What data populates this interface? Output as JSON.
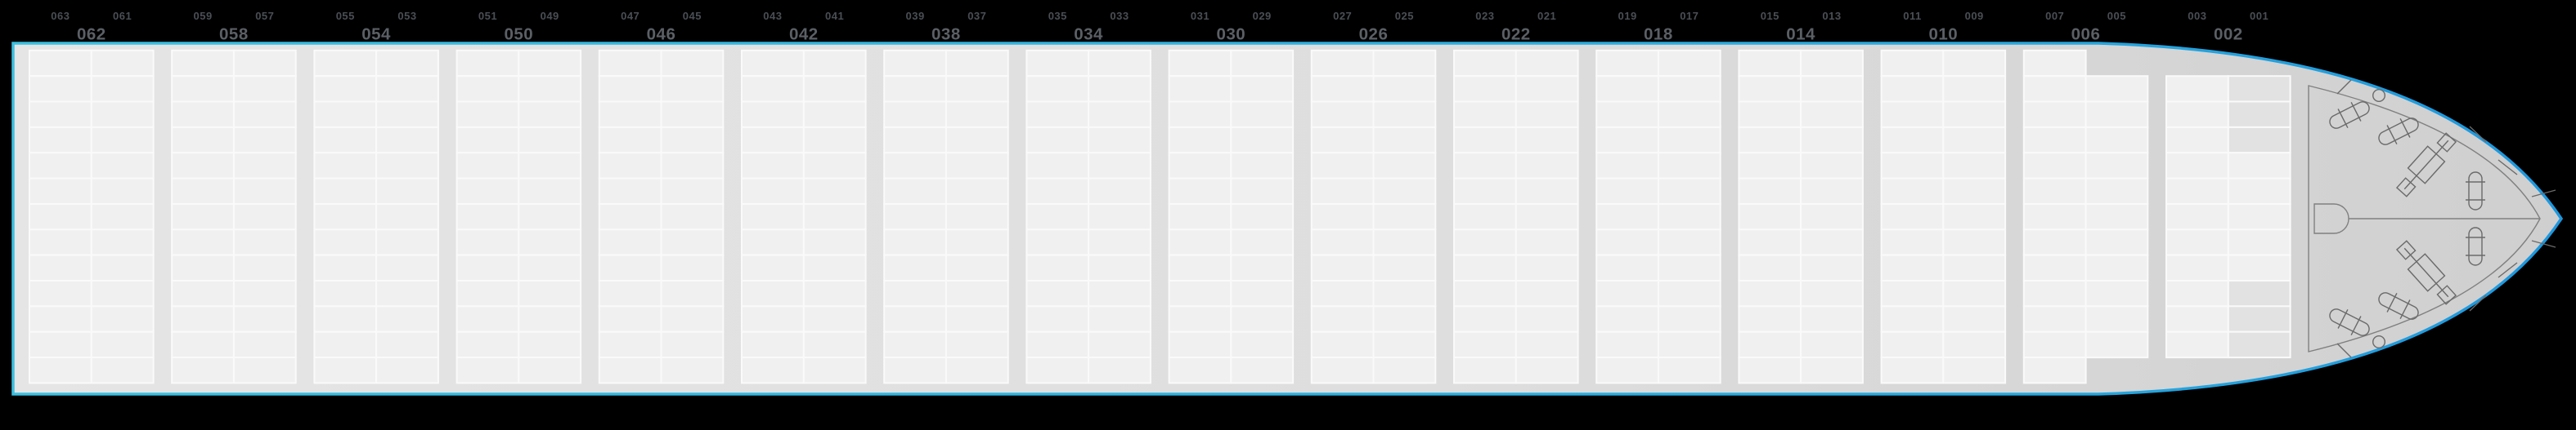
{
  "view": {
    "name": "vessel-bay-plan",
    "background_color": "#000000"
  },
  "colors": {
    "hull_border_left": "#3cc0e0",
    "hull_border_right": "#1e97dd",
    "hull_fill_left": "#e5e5e5",
    "hull_fill_right": "#cfcfcf",
    "cell_fill": "#f0f0f0",
    "cell_disabled_fill": "#e2e2e2",
    "cell_border": "#fafafa",
    "bay_label_small": "#4a4e54",
    "bay_label_large": "#5b6066",
    "forecastle_line": "#808080",
    "equipment_line": "#6a6a6a"
  },
  "bays": [
    {
      "odd_left": "063",
      "odd_right": "061",
      "even": "062"
    },
    {
      "odd_left": "059",
      "odd_right": "057",
      "even": "058"
    },
    {
      "odd_left": "055",
      "odd_right": "053",
      "even": "054"
    },
    {
      "odd_left": "051",
      "odd_right": "049",
      "even": "050"
    },
    {
      "odd_left": "047",
      "odd_right": "045",
      "even": "046"
    },
    {
      "odd_left": "043",
      "odd_right": "041",
      "even": "042"
    },
    {
      "odd_left": "039",
      "odd_right": "037",
      "even": "038"
    },
    {
      "odd_left": "035",
      "odd_right": "033",
      "even": "034"
    },
    {
      "odd_left": "031",
      "odd_right": "029",
      "even": "030"
    },
    {
      "odd_left": "027",
      "odd_right": "025",
      "even": "026"
    },
    {
      "odd_left": "023",
      "odd_right": "021",
      "even": "022"
    },
    {
      "odd_left": "019",
      "odd_right": "017",
      "even": "018"
    },
    {
      "odd_left": "015",
      "odd_right": "013",
      "even": "014"
    },
    {
      "odd_left": "011",
      "odd_right": "009",
      "even": "010"
    },
    {
      "odd_left": "007",
      "odd_right": "005",
      "even": "006",
      "left_from": 1,
      "left_to": 13,
      "right_from": 2,
      "right_to": 12
    },
    {
      "odd_left": "003",
      "odd_right": "001",
      "even": "002",
      "left_from": 2,
      "left_to": 12,
      "right_from": 2,
      "right_to": 12,
      "right_disabled": [
        2,
        3,
        4,
        10,
        11,
        12
      ]
    }
  ],
  "rows_per_bay": 13,
  "columns_per_bay": 2,
  "bow": {
    "equipment": [
      "fairlead-circle-port",
      "fairlead-circle-starboard",
      "mooring-winch-port-1",
      "mooring-winch-port-2",
      "anchor-windlass-chain-port",
      "warping-winch-port",
      "anchor-windlass-chain-starboard",
      "warping-winch-starboard",
      "mooring-winch-starboard-1",
      "mooring-winch-starboard-2",
      "bow-mast",
      "centerline",
      "bulwark-stays"
    ]
  }
}
